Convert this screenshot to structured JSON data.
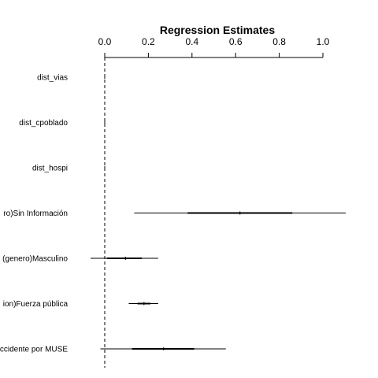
{
  "chart_data": {
    "type": "coefficient-plot",
    "title": "Regression Estimates",
    "xlabel": "",
    "ylabel": "",
    "xlim": [
      0,
      1.0
    ],
    "x_ticks": [
      "0.0",
      "0.2",
      "0.4",
      "0.6",
      "0.8",
      "1.0"
    ],
    "x_tick_values": [
      0,
      0.2,
      0.4,
      0.6,
      0.8,
      1.0
    ],
    "axis_position": "top",
    "zero_line": "dashed",
    "grid": false,
    "terms": [
      {
        "label": "dist_vias",
        "estimate": 0.0,
        "inner": [
          0.0,
          0.0
        ],
        "outer": [
          0.0,
          0.0
        ]
      },
      {
        "label": "dist_cpoblado",
        "estimate": 0.0,
        "inner": [
          0.0,
          0.0
        ],
        "outer": [
          0.0,
          0.0
        ]
      },
      {
        "label": "dist_hospi",
        "estimate": 0.0,
        "inner": [
          0.0,
          0.0
        ],
        "outer": [
          0.0,
          0.0
        ]
      },
      {
        "label": "ro)Sin Información",
        "estimate": 0.62,
        "inner": [
          0.38,
          0.86
        ],
        "outer": [
          0.135,
          1.105
        ]
      },
      {
        "label": "(genero)Masculino",
        "estimate": 0.095,
        "inner": [
          0.01,
          0.17
        ],
        "outer": [
          -0.065,
          0.245
        ]
      },
      {
        "label": "ion)Fuerza pública",
        "estimate": 0.18,
        "inner": [
          0.15,
          0.21
        ],
        "outer": [
          0.11,
          0.245
        ]
      },
      {
        "label": "ccidente por MUSE",
        "estimate": 0.27,
        "inner": [
          0.125,
          0.41
        ],
        "outer": [
          -0.02,
          0.555
        ]
      }
    ]
  }
}
